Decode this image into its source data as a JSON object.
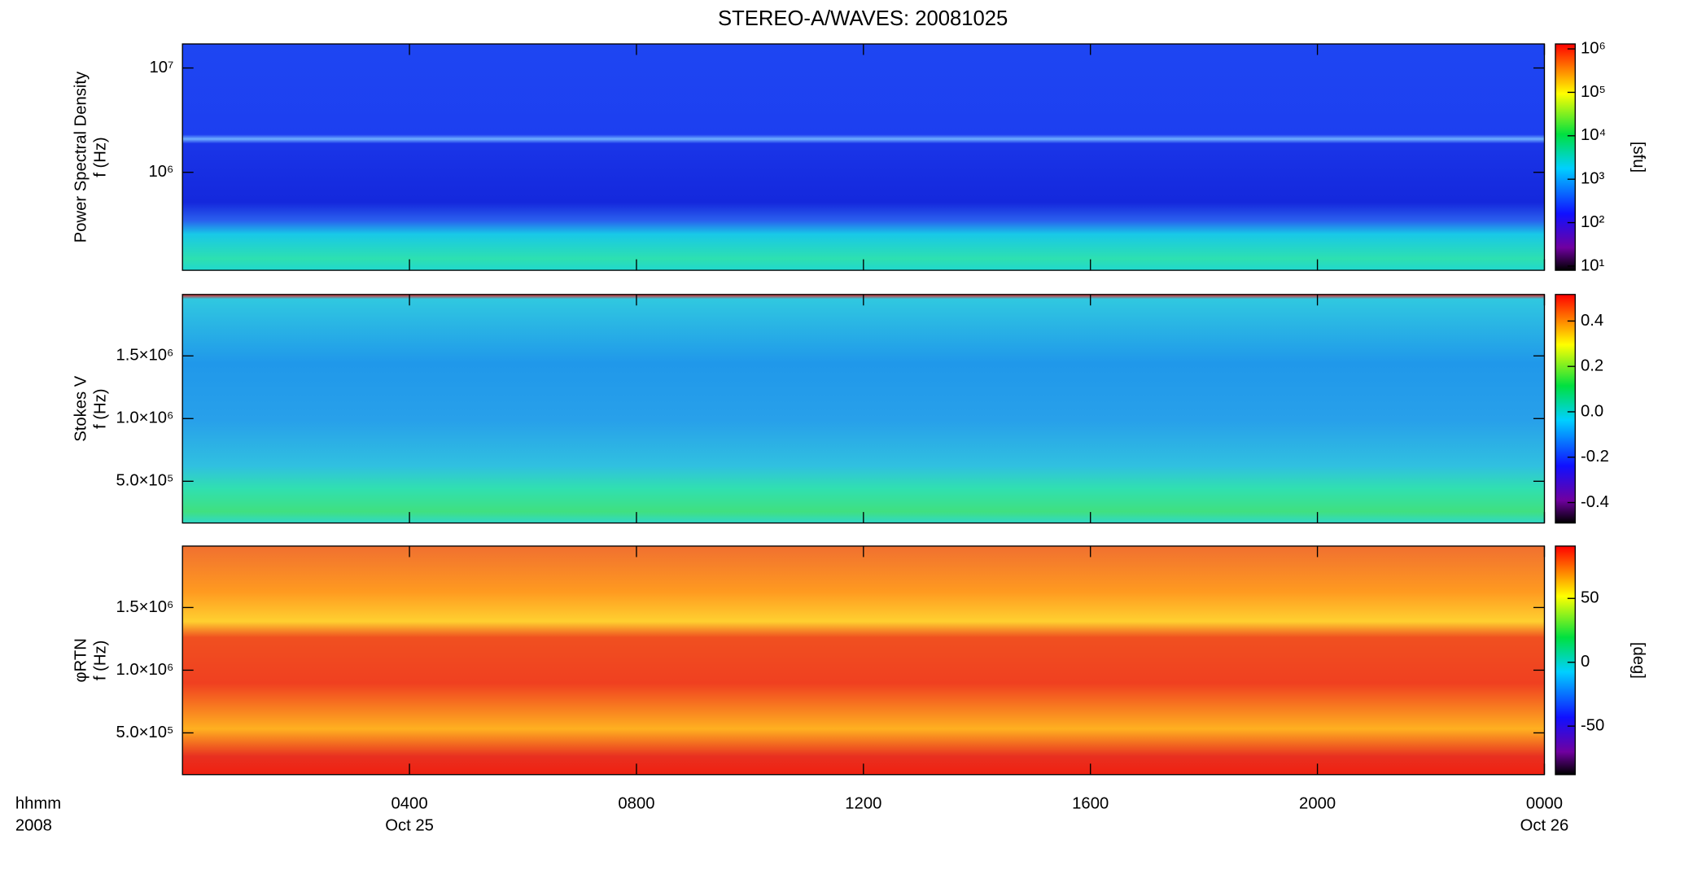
{
  "chart_data": [
    {
      "type": "heatmap",
      "title": "STEREO-A/WAVES: 20081025",
      "ylabel": [
        "Power Spectral Density",
        "f (Hz)"
      ],
      "ylog": true,
      "ylim": [
        115000,
        17000000
      ],
      "yticks": [
        {
          "value": 1000000,
          "label": "10⁶"
        },
        {
          "value": 10000000,
          "label": "10⁷"
        }
      ],
      "colorbar": {
        "log": true,
        "lim": [
          8,
          1300000
        ],
        "label": "[sfu]",
        "ticks": [
          {
            "value": 10,
            "label": "10¹"
          },
          {
            "value": 100,
            "label": "10²"
          },
          {
            "value": 1000,
            "label": "10³"
          },
          {
            "value": 10000,
            "label": "10⁴"
          },
          {
            "value": 100000,
            "label": "10⁵"
          },
          {
            "value": 1000000,
            "label": "10⁶"
          }
        ]
      }
    },
    {
      "type": "heatmap",
      "ylabel": [
        "Stokes V",
        "f (Hz)"
      ],
      "ylog": false,
      "ylim": [
        167000,
        1990000
      ],
      "yticks": [
        {
          "value": 500000,
          "label": "5.0×10⁵"
        },
        {
          "value": 1000000,
          "label": "1.0×10⁶"
        },
        {
          "value": 1500000,
          "label": "1.5×10⁶"
        }
      ],
      "colorbar": {
        "log": false,
        "lim": [
          -0.49,
          0.517
        ],
        "ticks": [
          {
            "value": -0.4,
            "label": "-0.4"
          },
          {
            "value": -0.2,
            "label": "-0.2"
          },
          {
            "value": 0,
            "label": "0.0"
          },
          0.2,
          0.4
        ]
      }
    },
    {
      "type": "heatmap",
      "ylabel": [
        "φRTN",
        "f (Hz)"
      ],
      "ylog": false,
      "ylim": [
        167000,
        1990000
      ],
      "yticks": [
        {
          "value": 500000,
          "label": "5.0×10⁵"
        },
        {
          "value": 1000000,
          "label": "1.0×10⁶"
        },
        {
          "value": 1500000,
          "label": "1.5×10⁶"
        }
      ],
      "colorbar": {
        "log": false,
        "lim": [
          -88,
          91
        ],
        "label": "[deg]",
        "ticks": [
          -50,
          0,
          50
        ]
      },
      "xlim": [
        0,
        24
      ],
      "xlabel": [
        "hhmm",
        "2008"
      ],
      "xticks": [
        {
          "value": 4,
          "label": "0400"
        },
        {
          "value": 8,
          "label": "0800"
        },
        {
          "value": 12,
          "label": "1200"
        },
        {
          "value": 16,
          "label": "1600"
        },
        {
          "value": 20,
          "label": "2000"
        },
        {
          "value": 24,
          "label": "0000"
        }
      ],
      "xtick_dates": [
        "Oct 25",
        null,
        null,
        null,
        null,
        "Oct 26"
      ]
    }
  ]
}
